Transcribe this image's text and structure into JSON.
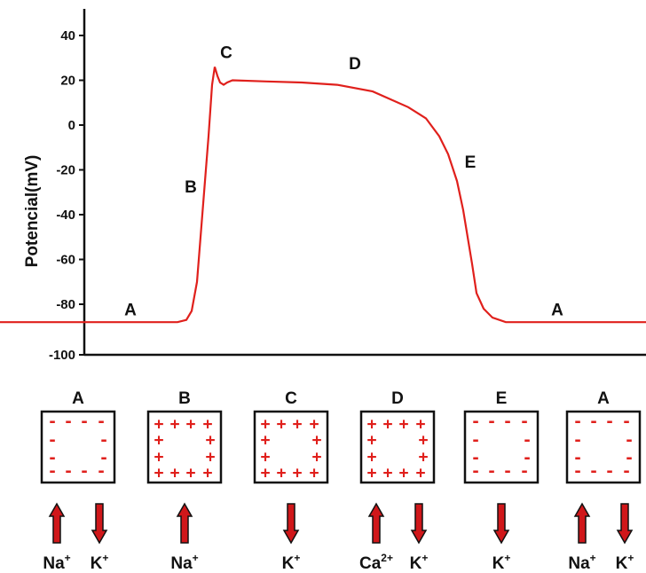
{
  "chart_data": {
    "type": "line",
    "title": "",
    "xlabel": "",
    "ylabel": "Potencial(mV)",
    "ylim": [
      -100,
      45
    ],
    "yticks": [
      40,
      20,
      0,
      -20,
      -40,
      -60,
      -80,
      -100
    ],
    "grid": false,
    "line_color": "#e0201c",
    "series": [
      {
        "name": "",
        "points": [
          [
            0,
            -88
          ],
          [
            200,
            -88
          ],
          [
            210,
            -87
          ],
          [
            216,
            -83
          ],
          [
            222,
            -70
          ],
          [
            228,
            -40
          ],
          [
            235,
            -5
          ],
          [
            239,
            18
          ],
          [
            242,
            26
          ],
          [
            245,
            22
          ],
          [
            248,
            19
          ],
          [
            252,
            18
          ],
          [
            256,
            19
          ],
          [
            262,
            20
          ],
          [
            300,
            19.5
          ],
          [
            340,
            19
          ],
          [
            380,
            18
          ],
          [
            420,
            15
          ],
          [
            460,
            8
          ],
          [
            480,
            3
          ],
          [
            495,
            -5
          ],
          [
            505,
            -13
          ],
          [
            515,
            -25
          ],
          [
            522,
            -38
          ],
          [
            527,
            -50
          ],
          [
            532,
            -62
          ],
          [
            537,
            -75
          ],
          [
            545,
            -82
          ],
          [
            555,
            -86
          ],
          [
            570,
            -88
          ],
          [
            600,
            -88
          ],
          [
            728,
            -88
          ]
        ]
      }
    ],
    "point_labels": [
      {
        "label": "A",
        "x": 147,
        "y": -85
      },
      {
        "label": "B",
        "x": 215,
        "y": -30
      },
      {
        "label": "C",
        "x": 255,
        "y": 30
      },
      {
        "label": "D",
        "x": 400,
        "y": 25
      },
      {
        "label": "E",
        "x": 530,
        "y": -19
      },
      {
        "label": "A",
        "x": 628,
        "y": -85
      }
    ]
  },
  "cells": [
    {
      "label": "A",
      "signs": "-",
      "ions": [
        {
          "base": "Na",
          "sup": "+",
          "dir": "up"
        },
        {
          "base": "K",
          "sup": "+",
          "dir": "down"
        }
      ]
    },
    {
      "label": "B",
      "signs": "+",
      "ions": [
        {
          "base": "Na",
          "sup": "+",
          "dir": "up"
        }
      ]
    },
    {
      "label": "C",
      "signs": "+",
      "ions": [
        {
          "base": "K",
          "sup": "+",
          "dir": "down"
        }
      ]
    },
    {
      "label": "D",
      "signs": "+",
      "ions": [
        {
          "base": "Ca",
          "sup": "2+",
          "dir": "up"
        },
        {
          "base": "K",
          "sup": "+",
          "dir": "down"
        }
      ]
    },
    {
      "label": "E",
      "signs": "-",
      "ions": [
        {
          "base": "K",
          "sup": "+",
          "dir": "down"
        }
      ]
    },
    {
      "label": "A",
      "signs": "-",
      "ions": [
        {
          "base": "Na",
          "sup": "+",
          "dir": "up"
        },
        {
          "base": "K",
          "sup": "+",
          "dir": "down"
        }
      ]
    }
  ],
  "colors": {
    "line": "#e0201c",
    "arrow": "#d0171a",
    "axis": "#111111"
  }
}
